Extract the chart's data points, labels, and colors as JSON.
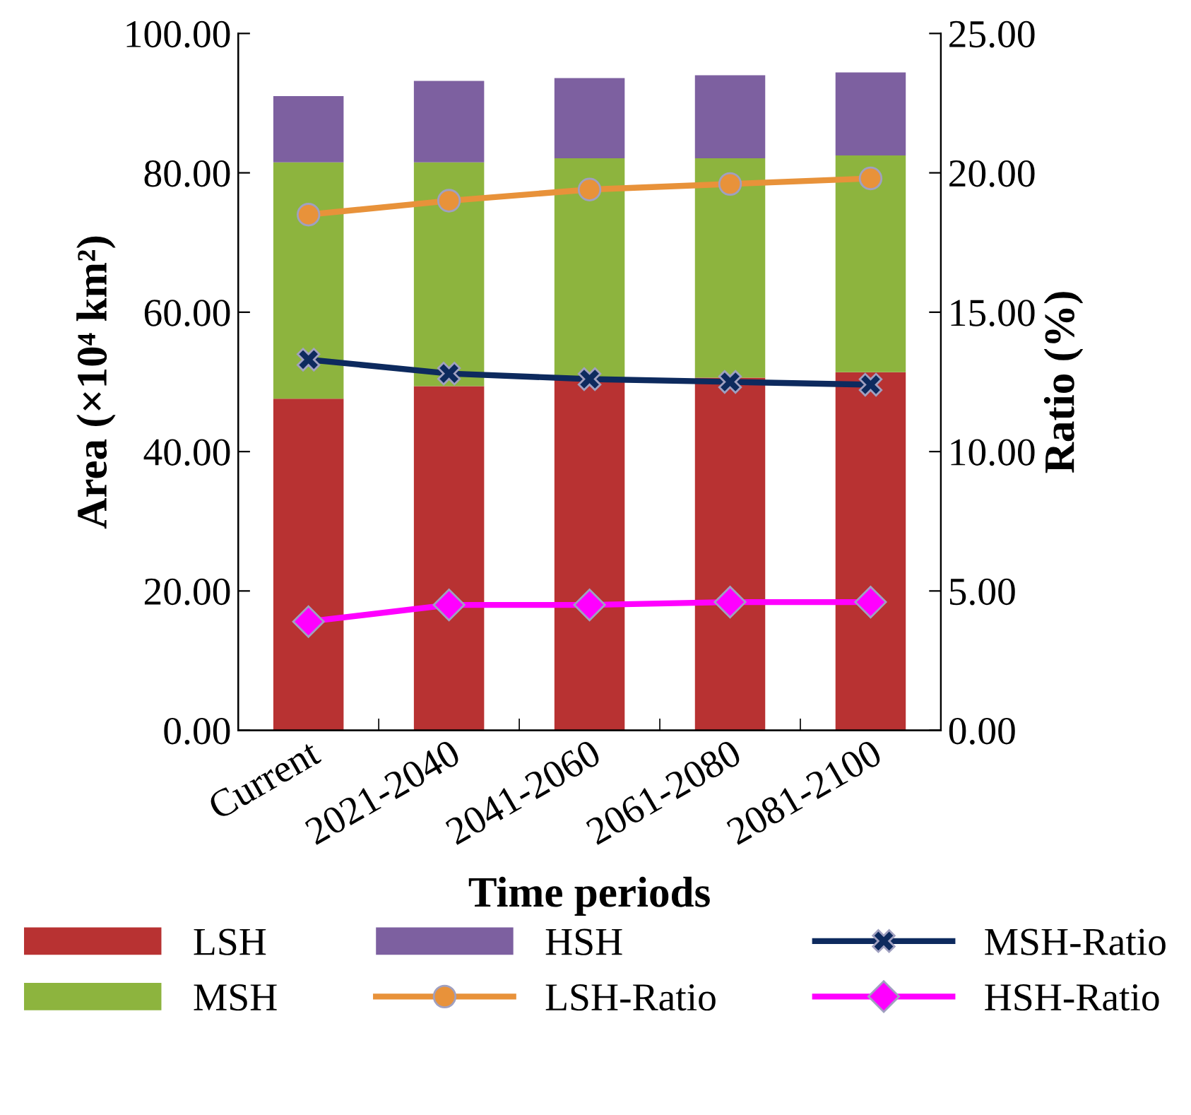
{
  "chart_data": {
    "type": "bar",
    "stacked": true,
    "xlabel": "Time periods",
    "ylabel": "Area (×10⁴ km²)",
    "y2label": "Ratio (%)",
    "categories": [
      "Current",
      "2021-2040",
      "2041-2060",
      "2061-2080",
      "2081-2100"
    ],
    "series": [
      {
        "name": "LSH",
        "color": "#b83232",
        "values": [
          47.6,
          49.4,
          50.4,
          50.6,
          51.4
        ]
      },
      {
        "name": "MSH",
        "color": "#8db43e",
        "values": [
          33.9,
          32.1,
          31.7,
          31.5,
          31.1
        ]
      },
      {
        "name": "HSH",
        "color": "#7d60a0",
        "values": [
          9.5,
          11.7,
          11.5,
          11.9,
          11.9
        ]
      },
      {
        "name": "LSH-Ratio",
        "type": "line",
        "axis": "y2",
        "marker": "circle",
        "color": "#e8923a",
        "values": [
          18.5,
          19.0,
          19.4,
          19.6,
          19.8
        ]
      },
      {
        "name": "MSH-Ratio",
        "type": "line",
        "axis": "y2",
        "marker": "cross",
        "color": "#0d2a5e",
        "values": [
          13.3,
          12.8,
          12.6,
          12.5,
          12.4
        ]
      },
      {
        "name": "HSH-Ratio",
        "type": "line",
        "axis": "y2",
        "marker": "diamond",
        "color": "#ff00ff",
        "values": [
          3.9,
          4.5,
          4.5,
          4.6,
          4.6
        ]
      }
    ],
    "ylim": [
      0,
      100
    ],
    "yticks": [
      {
        "value": 0,
        "label": "0.00"
      },
      {
        "value": 20,
        "label": "20.00"
      },
      {
        "value": 40,
        "label": "40.00"
      },
      {
        "value": 60,
        "label": "60.00"
      },
      {
        "value": 80,
        "label": "80.00"
      },
      {
        "value": 100,
        "label": "100.00"
      }
    ],
    "y2lim": [
      0,
      25
    ],
    "y2ticks": [
      {
        "value": 0,
        "label": "0.00"
      },
      {
        "value": 5,
        "label": "5.00"
      },
      {
        "value": 10,
        "label": "10.00"
      },
      {
        "value": 15,
        "label": "15.00"
      },
      {
        "value": 20,
        "label": "20.00"
      },
      {
        "value": 25,
        "label": "25.00"
      }
    ],
    "grid": false,
    "legend": "bottom"
  }
}
